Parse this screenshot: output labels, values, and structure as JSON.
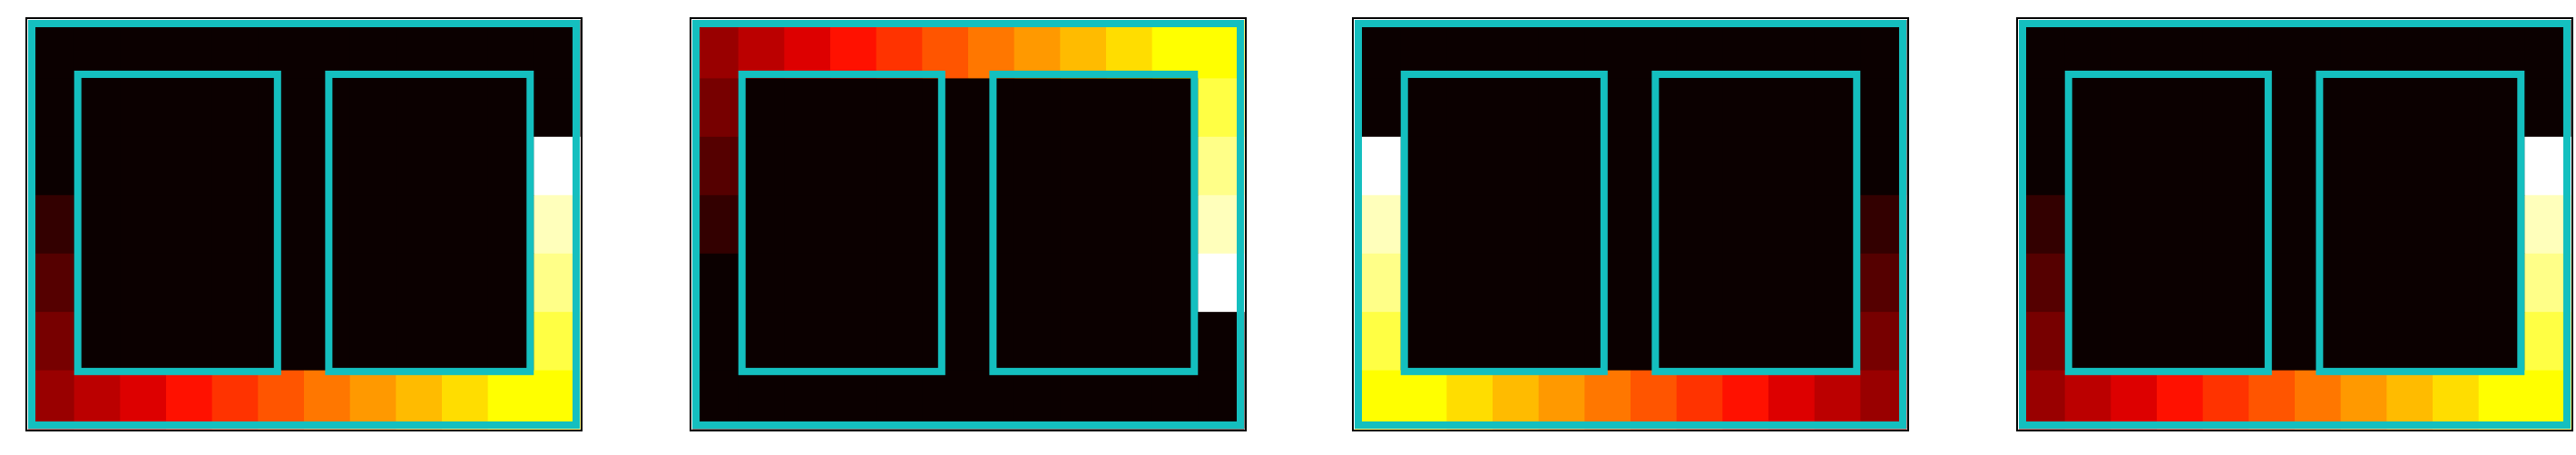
{
  "palette": [
    "#0b0000",
    "#330000",
    "#550000",
    "#770000",
    "#990000",
    "#bb0000",
    "#dd0000",
    "#ff1100",
    "#ff3300",
    "#ff5500",
    "#ff7700",
    "#ff9900",
    "#ffbb00",
    "#ffdd00",
    "#ffff00",
    "#ffff44",
    "#ffff88",
    "#ffffbb",
    "#ffffff"
  ],
  "panels": [
    {
      "grid": [
        [
          0,
          0,
          0,
          0,
          0,
          0,
          0,
          0,
          0,
          0,
          0,
          0
        ],
        [
          0,
          0,
          0,
          0,
          0,
          0,
          0,
          0,
          0,
          0,
          0,
          0
        ],
        [
          0,
          0,
          0,
          0,
          0,
          0,
          0,
          0,
          0,
          0,
          0,
          18
        ],
        [
          1,
          0,
          0,
          0,
          0,
          0,
          0,
          0,
          0,
          0,
          0,
          17
        ],
        [
          2,
          0,
          0,
          0,
          0,
          0,
          0,
          0,
          0,
          0,
          0,
          16
        ],
        [
          3,
          0,
          0,
          0,
          0,
          0,
          0,
          0,
          0,
          0,
          0,
          15
        ],
        [
          4,
          5,
          6,
          7,
          8,
          9,
          10,
          11,
          12,
          13,
          14,
          14
        ]
      ]
    },
    {
      "grid": [
        [
          4,
          5,
          6,
          7,
          8,
          9,
          10,
          11,
          12,
          13,
          14,
          14
        ],
        [
          3,
          0,
          0,
          0,
          0,
          0,
          0,
          0,
          0,
          0,
          0,
          15
        ],
        [
          2,
          0,
          0,
          0,
          0,
          0,
          0,
          0,
          0,
          0,
          0,
          16
        ],
        [
          1,
          0,
          0,
          0,
          0,
          0,
          0,
          0,
          0,
          0,
          0,
          17
        ],
        [
          0,
          0,
          0,
          0,
          0,
          0,
          0,
          0,
          0,
          0,
          0,
          18
        ],
        [
          0,
          0,
          0,
          0,
          0,
          0,
          0,
          0,
          0,
          0,
          0,
          0
        ],
        [
          0,
          0,
          0,
          0,
          0,
          0,
          0,
          0,
          0,
          0,
          0,
          0
        ]
      ]
    },
    {
      "grid": [
        [
          0,
          0,
          0,
          0,
          0,
          0,
          0,
          0,
          0,
          0,
          0,
          0
        ],
        [
          0,
          0,
          0,
          0,
          0,
          0,
          0,
          0,
          0,
          0,
          0,
          0
        ],
        [
          18,
          0,
          0,
          0,
          0,
          0,
          0,
          0,
          0,
          0,
          0,
          0
        ],
        [
          17,
          0,
          0,
          0,
          0,
          0,
          0,
          0,
          0,
          0,
          0,
          1
        ],
        [
          16,
          0,
          0,
          0,
          0,
          0,
          0,
          0,
          0,
          0,
          0,
          2
        ],
        [
          15,
          0,
          0,
          0,
          0,
          0,
          0,
          0,
          0,
          0,
          0,
          3
        ],
        [
          14,
          14,
          13,
          12,
          11,
          10,
          9,
          8,
          7,
          6,
          5,
          4
        ]
      ]
    },
    {
      "grid": [
        [
          0,
          0,
          0,
          0,
          0,
          0,
          0,
          0,
          0,
          0,
          0,
          0
        ],
        [
          0,
          0,
          0,
          0,
          0,
          0,
          0,
          0,
          0,
          0,
          0,
          0
        ],
        [
          0,
          0,
          0,
          0,
          0,
          0,
          0,
          0,
          0,
          0,
          0,
          18
        ],
        [
          1,
          0,
          0,
          0,
          0,
          0,
          0,
          0,
          0,
          0,
          0,
          17
        ],
        [
          2,
          0,
          0,
          0,
          0,
          0,
          0,
          0,
          0,
          0,
          0,
          16
        ],
        [
          3,
          0,
          0,
          0,
          0,
          0,
          0,
          0,
          0,
          0,
          0,
          15
        ],
        [
          4,
          5,
          6,
          7,
          8,
          9,
          10,
          11,
          12,
          13,
          14,
          14
        ]
      ]
    }
  ]
}
